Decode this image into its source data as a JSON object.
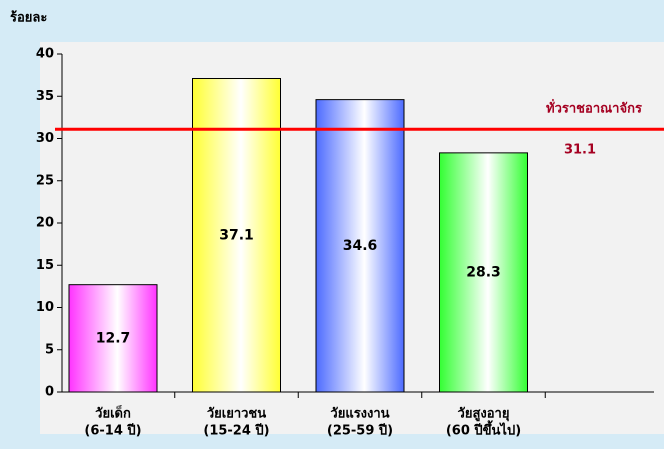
{
  "chart_data": {
    "type": "bar",
    "y_label": "ร้อยละ",
    "categories": [
      [
        "วัยเด็ก",
        "(6-14 ปี)"
      ],
      [
        "วัยเยาวชน",
        "(15-24 ปี)"
      ],
      [
        "วัยแรงงาน",
        "(25-59 ปี)"
      ],
      [
        "วัยสูงอายุ",
        "(60 ปีขึ้นไป)"
      ]
    ],
    "values": [
      12.7,
      37.1,
      34.6,
      28.3
    ],
    "colors": [
      "#ff33ff",
      "#ffff33",
      "#4d6bff",
      "#33ff33"
    ],
    "ylim": [
      0,
      40
    ],
    "yticks": [
      0,
      5,
      10,
      15,
      20,
      25,
      30,
      35,
      40
    ],
    "reference_line": {
      "value": 31.1,
      "label": "ทั่วราชอาณาจักร",
      "color": "#ff0000"
    }
  }
}
